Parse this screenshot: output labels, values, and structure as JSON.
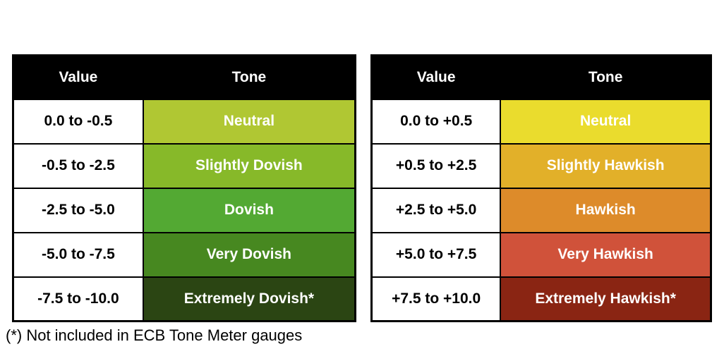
{
  "chart_data": {
    "type": "table",
    "title": "",
    "tables": [
      {
        "name": "dovish-scale",
        "headers": [
          "Value",
          "Tone"
        ],
        "rows": [
          {
            "value": "0.0 to -0.5",
            "tone": "Neutral",
            "color": "#b0c733"
          },
          {
            "value": "-0.5 to -2.5",
            "tone": "Slightly Dovish",
            "color": "#87b929"
          },
          {
            "value": "-2.5 to -5.0",
            "tone": "Dovish",
            "color": "#53a933"
          },
          {
            "value": "-5.0 to -7.5",
            "tone": "Very Dovish",
            "color": "#478820"
          },
          {
            "value": "-7.5 to -10.0",
            "tone": "Extremely Dovish*",
            "color": "#2b4513"
          }
        ]
      },
      {
        "name": "hawkish-scale",
        "headers": [
          "Value",
          "Tone"
        ],
        "rows": [
          {
            "value": "0.0 to +0.5",
            "tone": "Neutral",
            "color": "#eadc2d"
          },
          {
            "value": "+0.5 to +2.5",
            "tone": "Slightly Hawkish",
            "color": "#e2b029"
          },
          {
            "value": "+2.5 to +5.0",
            "tone": "Hawkish",
            "color": "#dd8b2a"
          },
          {
            "value": "+5.0 to +7.5",
            "tone": "Very Hawkish",
            "color": "#d0523a"
          },
          {
            "value": "+7.5 to +10.0",
            "tone": "Extremely Hawkish*",
            "color": "#8a2513"
          }
        ]
      }
    ],
    "footnote": "(*) Not included in ECB Tone Meter gauges",
    "header_colors": {
      "background": "#000000",
      "text": "#ffffff"
    }
  }
}
